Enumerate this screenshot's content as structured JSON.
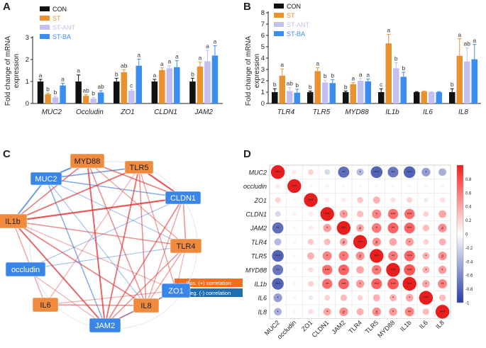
{
  "panels": {
    "a": "A",
    "b": "B",
    "c": "C",
    "d": "D"
  },
  "colors": {
    "CON": "#111111",
    "ST": "#e8912e",
    "ST-ANT": "#c3bff0",
    "ST-BA": "#3b8ef0",
    "pos_edge": "#e03a3a",
    "neg_edge": "#2f6fd6",
    "node_orange": "#f08a3c",
    "node_blue": "#3a86e8"
  },
  "legend": [
    "CON",
    "ST",
    "ST-ANT",
    "ST-BA"
  ],
  "chart_data": [
    {
      "type": "bar",
      "panel": "A",
      "ylabel": "Fold change of mRNA expression",
      "ylabel_lines": [
        "Fold change of mRNA",
        "expression"
      ],
      "ylim": [
        0,
        3
      ],
      "yticks": [
        "0",
        "1",
        "2",
        "3"
      ],
      "categories": [
        "MUC2",
        "Occludin",
        "ZO1",
        "CLDN1",
        "JAM2"
      ],
      "series": [
        {
          "name": "CON",
          "values": [
            1.0,
            1.0,
            1.0,
            1.0,
            1.0
          ],
          "errors": [
            0.1,
            0.3,
            0.15,
            0.1,
            0.15
          ]
        },
        {
          "name": "ST",
          "values": [
            0.42,
            0.35,
            1.42,
            1.52,
            1.68
          ],
          "errors": [
            0.05,
            0.05,
            0.12,
            0.1,
            0.2
          ]
        },
        {
          "name": "ST-ANT",
          "values": [
            0.28,
            0.22,
            0.58,
            1.6,
            1.92
          ],
          "errors": [
            0.05,
            0.05,
            0.05,
            0.12,
            0.5
          ]
        },
        {
          "name": "ST-BA",
          "values": [
            0.82,
            0.5,
            1.72,
            1.65,
            2.18
          ],
          "errors": [
            0.1,
            0.08,
            0.3,
            0.3,
            0.45
          ]
        }
      ],
      "sig": [
        [
          "a",
          "b",
          "b",
          "a"
        ],
        [
          "a",
          "ab",
          "b",
          "ab"
        ],
        [
          "b",
          "ab",
          "c",
          "a"
        ],
        [
          "a",
          "a",
          "a",
          "a"
        ],
        [
          "b",
          "a",
          "a",
          "a"
        ]
      ]
    },
    {
      "type": "bar",
      "panel": "B",
      "ylabel": "Fold change of mRNA expression",
      "ylabel_lines": [
        "Fold change of mRNA",
        "expression"
      ],
      "ylim": [
        0,
        8
      ],
      "yticks": [
        "0",
        "1",
        "2",
        "3",
        "4",
        "5",
        "6",
        "7",
        "8"
      ],
      "categories": [
        "TLR4",
        "TLR5",
        "MYD88",
        "IL1b",
        "IL6",
        "IL8"
      ],
      "series": [
        {
          "name": "CON",
          "values": [
            1.0,
            1.0,
            1.0,
            1.0,
            1.0,
            1.0
          ],
          "errors": [
            0.3,
            0.1,
            0.1,
            0.3,
            0.05,
            0.3
          ]
        },
        {
          "name": "ST",
          "values": [
            2.45,
            2.85,
            1.7,
            5.3,
            1.05,
            4.2
          ],
          "errors": [
            0.6,
            0.3,
            0.15,
            0.8,
            0.05,
            1.5
          ]
        },
        {
          "name": "ST-ANT",
          "values": [
            1.1,
            1.85,
            2.0,
            3.1,
            1.0,
            3.7
          ],
          "errors": [
            0.3,
            0.2,
            0.2,
            0.5,
            0.05,
            1.2
          ]
        },
        {
          "name": "ST-BA",
          "values": [
            0.95,
            1.8,
            1.95,
            2.35,
            1.0,
            3.9
          ],
          "errors": [
            0.3,
            0.3,
            0.2,
            0.4,
            0.05,
            1.3
          ]
        }
      ],
      "sig": [
        [
          "b",
          "a",
          "ab",
          "b"
        ],
        [
          "b",
          "a",
          "b",
          "b"
        ],
        [
          "b",
          "a",
          "a",
          "a"
        ],
        [
          "c",
          "a",
          "b",
          "b"
        ],
        [
          "",
          "",
          "",
          ""
        ],
        [
          "b",
          "a",
          "ab",
          "a"
        ]
      ]
    },
    {
      "type": "network",
      "panel": "C",
      "nodes": [
        {
          "id": "MYD88",
          "group": "orange"
        },
        {
          "id": "TLR5",
          "group": "orange"
        },
        {
          "id": "MUC2",
          "group": "blue"
        },
        {
          "id": "CLDN1",
          "group": "blue"
        },
        {
          "id": "IL1b",
          "group": "orange"
        },
        {
          "id": "TLR4",
          "group": "orange"
        },
        {
          "id": "occludin",
          "group": "blue"
        },
        {
          "id": "ZO1",
          "group": "blue"
        },
        {
          "id": "IL6",
          "group": "orange"
        },
        {
          "id": "JAM2",
          "group": "blue"
        },
        {
          "id": "IL8",
          "group": "orange"
        }
      ],
      "edges": [
        [
          "MUC2",
          "MYD88",
          "neg",
          0.8
        ],
        [
          "MUC2",
          "TLR5",
          "neg",
          0.6
        ],
        [
          "MUC2",
          "CLDN1",
          "neg",
          0.5
        ],
        [
          "MUC2",
          "IL1b",
          "neg",
          0.7
        ],
        [
          "MUC2",
          "JAM2",
          "neg",
          0.5
        ],
        [
          "MUC2",
          "IL8",
          "neg",
          0.3
        ],
        [
          "MUC2",
          "TLR4",
          "neg",
          0.3
        ],
        [
          "MYD88",
          "CLDN1",
          "pos",
          0.6
        ],
        [
          "MYD88",
          "JAM2",
          "pos",
          0.8
        ],
        [
          "MYD88",
          "IL8",
          "pos",
          0.5
        ],
        [
          "MYD88",
          "IL1b",
          "pos",
          0.6
        ],
        [
          "MYD88",
          "TLR4",
          "pos",
          0.4
        ],
        [
          "TLR5",
          "CLDN1",
          "pos",
          0.9
        ],
        [
          "TLR5",
          "IL1b",
          "pos",
          0.7
        ],
        [
          "TLR5",
          "JAM2",
          "pos",
          0.7
        ],
        [
          "TLR5",
          "IL8",
          "pos",
          0.5
        ],
        [
          "TLR5",
          "ZO1",
          "pos",
          0.4
        ],
        [
          "TLR5",
          "IL6",
          "pos",
          0.3
        ],
        [
          "CLDN1",
          "IL1b",
          "pos",
          0.9
        ],
        [
          "CLDN1",
          "JAM2",
          "pos",
          0.6
        ],
        [
          "CLDN1",
          "TLR4",
          "pos",
          0.5
        ],
        [
          "CLDN1",
          "IL8",
          "pos",
          0.4
        ],
        [
          "CLDN1",
          "occludin",
          "neg",
          0.3
        ],
        [
          "IL1b",
          "JAM2",
          "pos",
          0.8
        ],
        [
          "IL1b",
          "TLR4",
          "pos",
          0.5
        ],
        [
          "IL1b",
          "IL8",
          "pos",
          0.6
        ],
        [
          "IL1b",
          "IL6",
          "pos",
          0.4
        ],
        [
          "IL1b",
          "ZO1",
          "pos",
          0.3
        ],
        [
          "occludin",
          "TLR4",
          "neg",
          0.3
        ],
        [
          "occludin",
          "JAM2",
          "pos",
          0.3
        ],
        [
          "ZO1",
          "JAM2",
          "neg",
          0.6
        ],
        [
          "ZO1",
          "IL8",
          "pos",
          0.4
        ],
        [
          "ZO1",
          "TLR4",
          "pos",
          0.3
        ],
        [
          "IL6",
          "IL8",
          "pos",
          0.5
        ],
        [
          "JAM2",
          "TLR4",
          "pos",
          0.5
        ],
        [
          "JAM2",
          "IL8",
          "pos",
          0.4
        ],
        [
          "TLR4",
          "IL8",
          "pos",
          0.4
        ],
        [
          "IL6",
          "ZO1",
          "pos",
          0.3
        ]
      ],
      "legend": {
        "pos": "Pos. (+) correlation",
        "neg": "Neg. (-) correlation"
      }
    },
    {
      "type": "heatmap",
      "panel": "D",
      "labels": [
        "MUC2",
        "occludin",
        "ZO1",
        "CLDN1",
        "JAM2",
        "TLR4",
        "TLR5",
        "MYD88",
        "IL1b",
        "IL6",
        "IL8"
      ],
      "colorbar_ticks": [
        "0.8",
        "0.6",
        "0.4",
        "0.2",
        "0",
        "-0.2",
        "-0.4",
        "-0.6",
        "-0.8",
        "-1"
      ],
      "range": [
        -1,
        1
      ],
      "matrix": [
        [
          1,
          0.1,
          0.2,
          -0.2,
          -0.75,
          -0.35,
          -0.8,
          -0.7,
          -0.8,
          -0.5,
          -0.4
        ],
        [
          0.1,
          1,
          0.05,
          -0.05,
          0.05,
          0.05,
          0.05,
          0.05,
          0.05,
          0.05,
          0.05
        ],
        [
          0.2,
          0.05,
          1,
          0.1,
          0.1,
          0.25,
          0.35,
          0.15,
          0.2,
          -0.1,
          0.15
        ],
        [
          -0.2,
          -0.05,
          0.1,
          1,
          0.45,
          0.3,
          0.55,
          0.65,
          0.65,
          0.2,
          0.4
        ],
        [
          -0.75,
          0.05,
          0.1,
          0.45,
          1,
          0.4,
          0.6,
          0.7,
          0.7,
          0.3,
          0.5
        ],
        [
          -0.35,
          0.05,
          0.25,
          0.3,
          0.4,
          1,
          0.5,
          0.4,
          0.45,
          0.2,
          0.35
        ],
        [
          -0.8,
          0.05,
          0.35,
          0.55,
          0.6,
          0.5,
          1,
          0.6,
          0.7,
          0.35,
          0.5
        ],
        [
          -0.7,
          0.05,
          0.15,
          0.65,
          0.7,
          0.4,
          0.6,
          1,
          0.75,
          0.35,
          0.45
        ],
        [
          -0.8,
          0.05,
          0.2,
          0.65,
          0.7,
          0.45,
          0.7,
          0.75,
          1,
          0.4,
          0.55
        ],
        [
          -0.5,
          0.05,
          -0.1,
          0.2,
          0.3,
          0.2,
          0.35,
          0.35,
          0.4,
          1,
          0.3
        ],
        [
          -0.4,
          0.05,
          0.15,
          0.4,
          0.5,
          0.35,
          0.5,
          0.45,
          0.55,
          0.3,
          1
        ]
      ],
      "stars": [
        [
          "***",
          "",
          "",
          "",
          "**",
          "*",
          "***",
          "**",
          "***",
          "*",
          ""
        ],
        [
          "",
          "***",
          "",
          "",
          "",
          "",
          "",
          "",
          "",
          "",
          ""
        ],
        [
          "",
          "",
          "***",
          "",
          "",
          "",
          "",
          "",
          "",
          "",
          ""
        ],
        [
          "",
          "",
          "",
          "***",
          "*",
          "",
          "*",
          "***",
          "***",
          "",
          ""
        ],
        [
          "**",
          "",
          "",
          "*",
          "***",
          "#",
          "*",
          "**",
          "***",
          "",
          "#"
        ],
        [
          "",
          "",
          "",
          "",
          "#",
          "***",
          "#",
          "",
          "*",
          "",
          ""
        ],
        [
          "***",
          "",
          "",
          "*",
          "*",
          "#",
          "***",
          "**",
          "***",
          "*",
          "#"
        ],
        [
          "**",
          "",
          "",
          "***",
          "**",
          "",
          "**",
          "***",
          "***",
          "*",
          "*"
        ],
        [
          "***",
          "",
          "",
          "**",
          "***",
          "*",
          "***",
          "***",
          "***",
          "*",
          "**"
        ],
        [
          "*",
          "",
          "",
          "",
          "",
          "",
          "",
          "*",
          "*",
          "***",
          ""
        ],
        [
          "*",
          "",
          "",
          "*",
          "#",
          "",
          "#",
          "*",
          "**",
          "",
          "***"
        ]
      ]
    }
  ]
}
